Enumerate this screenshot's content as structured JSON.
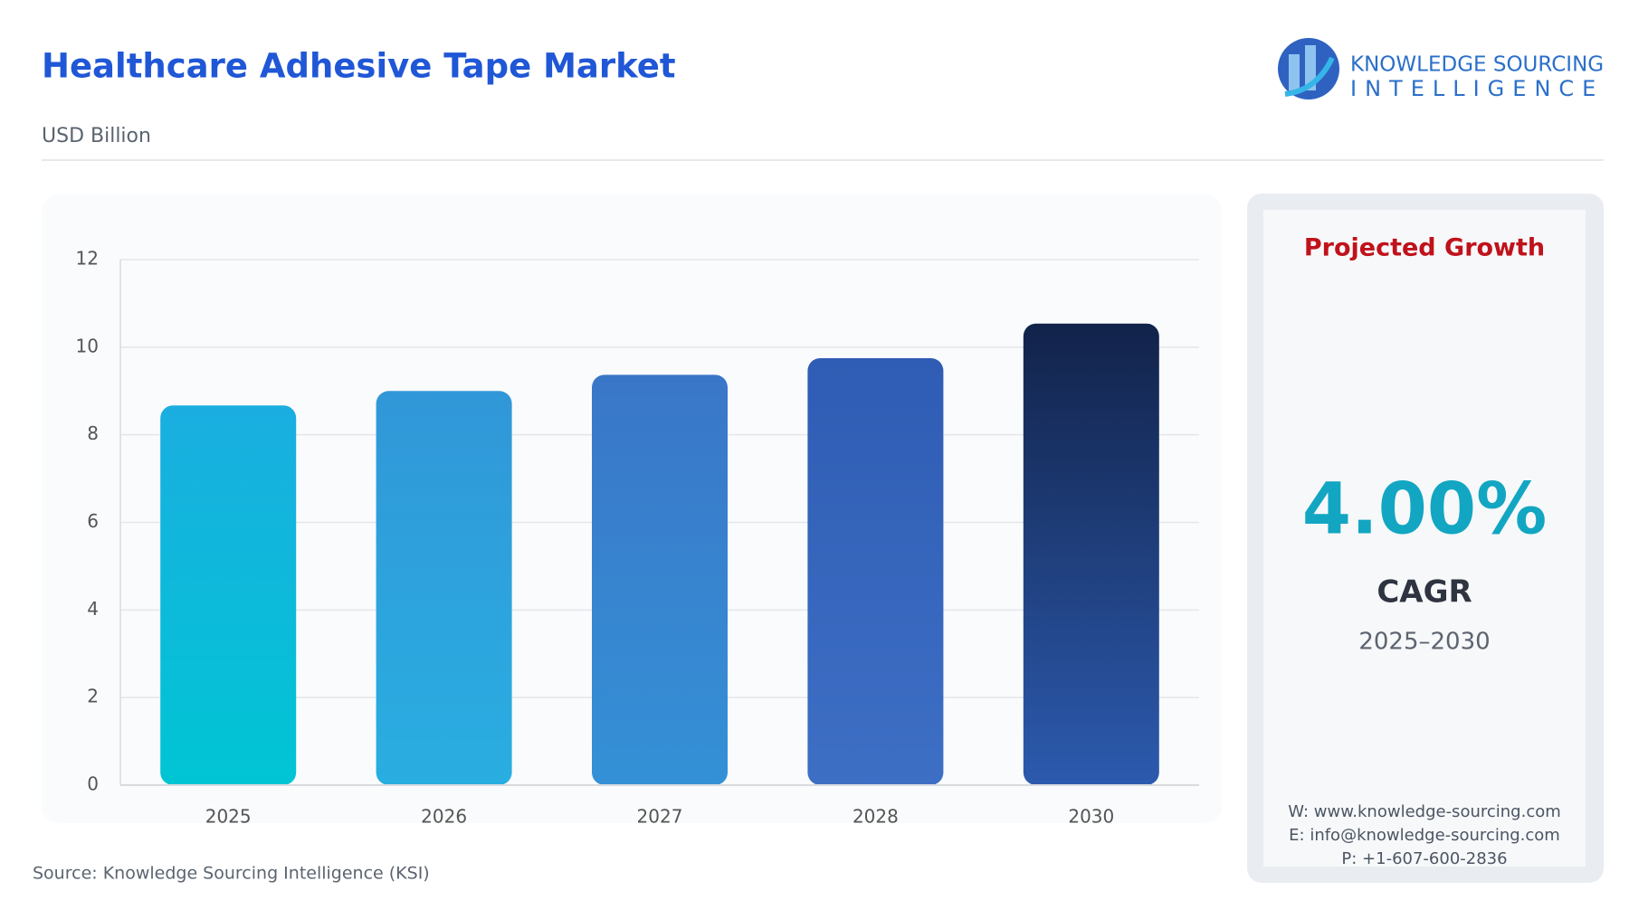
{
  "chart_data": {
    "type": "bar",
    "title": "Healthcare Adhesive Tape Market",
    "subtitle": "USD Billion",
    "categories": [
      "2025",
      "2026",
      "2027",
      "2028",
      "2030"
    ],
    "values": [
      8.67,
      9.0,
      9.37,
      9.75,
      10.54
    ],
    "colors": [
      [
        "#1aaee0",
        "#00c5d4"
      ],
      [
        "#3197d8",
        "#29aee1"
      ],
      [
        "#3a76c8",
        "#3491d6"
      ],
      [
        "#2f5cb4",
        "#3d6fc5"
      ],
      [
        "#12234a",
        "#2c5aae"
      ]
    ],
    "ylim": [
      0,
      12
    ],
    "yticks": [
      0,
      2,
      4,
      6,
      8,
      10,
      12
    ],
    "grid": true
  },
  "source": "Source: Knowledge Sourcing Intelligence (KSI)",
  "logo": {
    "line1": "KNOWLEDGE SOURCING",
    "line2": "INTELLIGENCE"
  },
  "panel": {
    "heading": "Projected Growth",
    "cagr_value": "4.00%",
    "cagr_label": "CAGR",
    "period": "2025–2030",
    "website": "W: www.knowledge-sourcing.com",
    "email": "E: info@knowledge-sourcing.com",
    "phone": "P: +1-607-600-2836"
  }
}
